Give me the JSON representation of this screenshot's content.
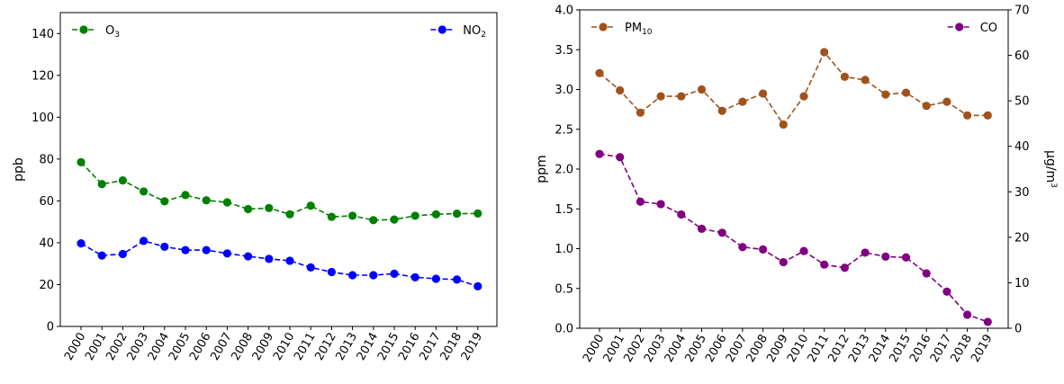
{
  "chart_data": [
    {
      "type": "line",
      "title": "",
      "xlabel": "",
      "ylabel": "ppb",
      "ylim": [
        0,
        150
      ],
      "yticks": [
        0,
        20,
        40,
        60,
        80,
        100,
        120,
        140
      ],
      "categories": [
        "2000",
        "2001",
        "2002",
        "2003",
        "2004",
        "2005",
        "2006",
        "2007",
        "2008",
        "2009",
        "2010",
        "2011",
        "2012",
        "2013",
        "2014",
        "2015",
        "2016",
        "2017",
        "2018",
        "2019"
      ],
      "grid": false,
      "series": [
        {
          "name": "O",
          "sub": "3",
          "legend": "top-left",
          "color": "#008000",
          "values": [
            78.5,
            68,
            69.8,
            64.5,
            59.8,
            62.8,
            60.3,
            59.3,
            56.1,
            56.6,
            53.6,
            57.7,
            52.4,
            52.9,
            50.8,
            51.1,
            52.9,
            53.6,
            53.9,
            54
          ]
        },
        {
          "name": "NO",
          "sub": "2",
          "legend": "top-right",
          "color": "#0000ff",
          "values": [
            39.7,
            33.9,
            34.6,
            40.9,
            38.1,
            36.5,
            36.5,
            34.9,
            33.5,
            32.3,
            31.4,
            28.2,
            26,
            24.5,
            24.5,
            25.2,
            23.5,
            22.8,
            22.4,
            19.2
          ]
        }
      ]
    },
    {
      "type": "line",
      "title": "",
      "xlabel": "",
      "ylabel": "ppm",
      "ylim": [
        0,
        4.0
      ],
      "yticks": [
        "0.0",
        "0.5",
        "1.0",
        "1.5",
        "2.0",
        "2.5",
        "3.0",
        "3.5",
        "4.0"
      ],
      "y2label": "μg/m",
      "y2label_sup": "3",
      "y2lim": [
        0,
        70
      ],
      "y2ticks": [
        0,
        10,
        20,
        30,
        40,
        50,
        60,
        70
      ],
      "categories": [
        "2000",
        "2001",
        "2002",
        "2003",
        "2004",
        "2005",
        "2006",
        "2007",
        "2008",
        "2009",
        "2010",
        "2011",
        "2012",
        "2013",
        "2014",
        "2015",
        "2016",
        "2017",
        "2018",
        "2019"
      ],
      "grid": false,
      "series": [
        {
          "name": "PM",
          "sub": "10",
          "axis": "right",
          "legend": "top-left",
          "color": "#a0521c",
          "values": [
            56.1,
            52.3,
            47.4,
            51,
            51,
            52.5,
            47.8,
            49.8,
            51.6,
            44.8,
            51,
            60.7,
            55.3,
            54.6,
            51.4,
            51.8,
            48.9,
            49.8,
            46.8,
            46.8
          ]
        },
        {
          "name": "CO",
          "sub": "",
          "axis": "left",
          "legend": "top-right",
          "color": "#800080",
          "values": [
            2.19,
            2.15,
            1.59,
            1.56,
            1.43,
            1.25,
            1.2,
            1.02,
            0.99,
            0.83,
            0.97,
            0.8,
            0.76,
            0.95,
            0.9,
            0.89,
            0.69,
            0.46,
            0.17,
            0.08
          ]
        }
      ]
    }
  ]
}
